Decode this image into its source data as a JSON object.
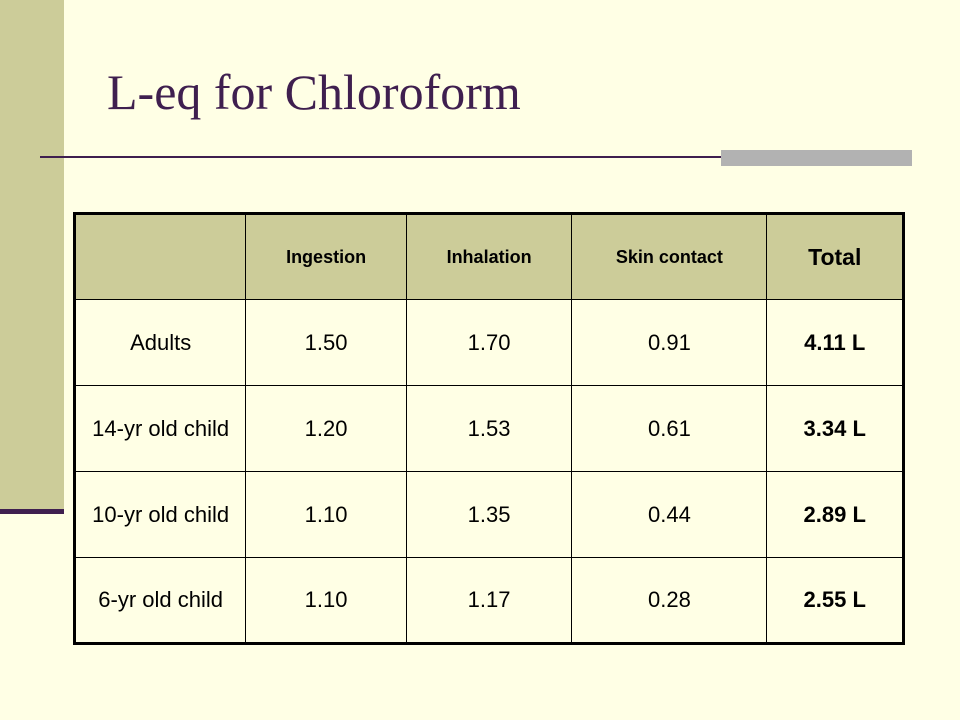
{
  "slide": {
    "title": "L-eq for Chloroform"
  },
  "table": {
    "columns": [
      "",
      "Ingestion",
      "Inhalation",
      "Skin contact",
      "Total"
    ],
    "rows": [
      {
        "label": "Adults",
        "ingestion": "1.50",
        "inhalation": "1.70",
        "skin_contact": "0.91",
        "total": "4.11 L"
      },
      {
        "label": "14-yr old child",
        "ingestion": "1.20",
        "inhalation": "1.53",
        "skin_contact": "0.61",
        "total": "3.34 L"
      },
      {
        "label": "10-yr old child",
        "ingestion": "1.10",
        "inhalation": "1.35",
        "skin_contact": "0.44",
        "total": "2.89 L"
      },
      {
        "label": "6-yr old child",
        "ingestion": "1.10",
        "inhalation": "1.17",
        "skin_contact": "0.28",
        "total": "2.55 L"
      }
    ]
  },
  "colors": {
    "background": "#FFFFE5",
    "sidebar": "#CCCC99",
    "title": "#3F1F4F",
    "header_fill": "#CCCC99",
    "rule_accent": "#B2B2B2"
  }
}
